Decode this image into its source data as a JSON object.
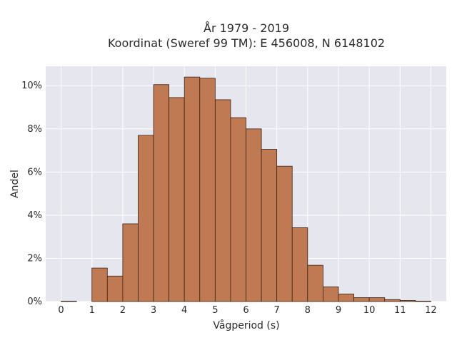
{
  "chart_data": {
    "type": "bar",
    "title_lines": [
      "År 1979 - 2019",
      "Koordinat (Sweref 99 TM): E 456008, N 6148102"
    ],
    "xlabel": "Vågperiod (s)",
    "ylabel": "Andel",
    "x_ticks": [
      0,
      1,
      2,
      3,
      4,
      5,
      6,
      7,
      8,
      9,
      10,
      11,
      12
    ],
    "y_ticks": [
      0,
      2,
      4,
      6,
      8,
      10
    ],
    "y_tick_format": "{v}%",
    "xlim": [
      -0.5,
      12.5
    ],
    "ylim": [
      0,
      10.9
    ],
    "bin_width": 0.5,
    "bins": [
      {
        "x0": 0.0,
        "value": 0.02
      },
      {
        "x0": 0.5,
        "value": 0.0
      },
      {
        "x0": 1.0,
        "value": 1.55
      },
      {
        "x0": 1.5,
        "value": 1.18
      },
      {
        "x0": 2.0,
        "value": 3.6
      },
      {
        "x0": 2.5,
        "value": 7.7
      },
      {
        "x0": 3.0,
        "value": 10.05
      },
      {
        "x0": 3.5,
        "value": 9.45
      },
      {
        "x0": 4.0,
        "value": 10.4
      },
      {
        "x0": 4.5,
        "value": 10.35
      },
      {
        "x0": 5.0,
        "value": 9.35
      },
      {
        "x0": 5.5,
        "value": 8.52
      },
      {
        "x0": 6.0,
        "value": 8.0
      },
      {
        "x0": 6.5,
        "value": 7.05
      },
      {
        "x0": 7.0,
        "value": 6.27
      },
      {
        "x0": 7.5,
        "value": 3.42
      },
      {
        "x0": 8.0,
        "value": 1.68
      },
      {
        "x0": 8.5,
        "value": 0.68
      },
      {
        "x0": 9.0,
        "value": 0.35
      },
      {
        "x0": 9.5,
        "value": 0.18
      },
      {
        "x0": 10.0,
        "value": 0.18
      },
      {
        "x0": 10.5,
        "value": 0.09
      },
      {
        "x0": 11.0,
        "value": 0.05
      },
      {
        "x0": 11.5,
        "value": 0.02
      }
    ],
    "grid": true,
    "colors": {
      "bar_fill": "#bf7a53",
      "bar_stroke": "#3b2216",
      "plot_background": "#e6e6ef",
      "grid": "#ffffff",
      "text": "#2a2a2a"
    }
  }
}
